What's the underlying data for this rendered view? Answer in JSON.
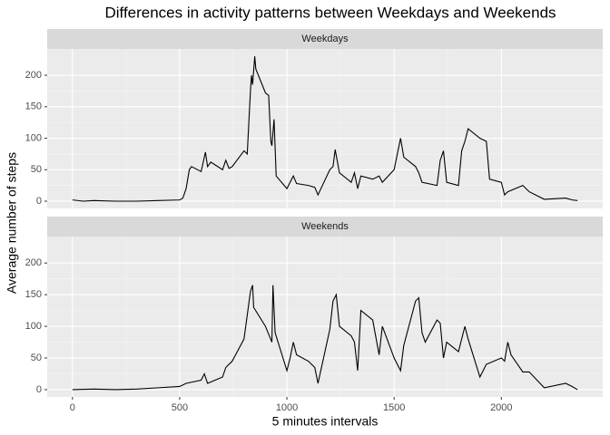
{
  "chart_data": {
    "type": "line",
    "title": "Differences in activity patterns between Weekdays and Weekends",
    "x_label": "5 minutes intervals",
    "y_label": "Average number of steps",
    "xlim": [
      -117.75,
      2472.75
    ],
    "xticks": [
      0,
      500,
      1000,
      1500,
      2000
    ],
    "ylim": [
      -11.5,
      241.8
    ],
    "yticks": [
      0,
      50,
      100,
      150,
      200
    ],
    "grid": true,
    "facets": [
      {
        "strip": "Weekdays",
        "color": "#000000",
        "x": [
          0,
          50,
          100,
          200,
          300,
          400,
          500,
          515,
          530,
          545,
          555,
          600,
          615,
          620,
          630,
          645,
          700,
          715,
          730,
          745,
          800,
          815,
          830,
          835,
          840,
          850,
          855,
          900,
          915,
          925,
          930,
          940,
          950,
          1000,
          1015,
          1030,
          1045,
          1100,
          1130,
          1145,
          1200,
          1215,
          1225,
          1245,
          1300,
          1315,
          1330,
          1345,
          1400,
          1430,
          1445,
          1500,
          1530,
          1545,
          1600,
          1615,
          1630,
          1700,
          1715,
          1730,
          1745,
          1800,
          1815,
          1830,
          1845,
          1900,
          1930,
          1945,
          2000,
          2015,
          2030,
          2100,
          2130,
          2200,
          2300,
          2330,
          2355
        ],
        "values": [
          2,
          0,
          1,
          0,
          0,
          1,
          2,
          5,
          20,
          50,
          55,
          47,
          70,
          78,
          55,
          62,
          50,
          65,
          52,
          55,
          80,
          75,
          175,
          200,
          185,
          230,
          210,
          172,
          168,
          95,
          88,
          130,
          40,
          20,
          30,
          40,
          28,
          25,
          22,
          10,
          50,
          55,
          82,
          45,
          30,
          45,
          20,
          40,
          35,
          40,
          30,
          50,
          100,
          70,
          55,
          45,
          30,
          25,
          65,
          80,
          30,
          25,
          80,
          95,
          115,
          100,
          95,
          35,
          30,
          10,
          15,
          25,
          15,
          3,
          5,
          2,
          1
        ]
      },
      {
        "strip": "Weekends",
        "color": "#000000",
        "x": [
          0,
          100,
          200,
          300,
          400,
          500,
          530,
          600,
          615,
          630,
          700,
          715,
          745,
          800,
          830,
          840,
          845,
          900,
          930,
          935,
          945,
          1000,
          1015,
          1030,
          1045,
          1100,
          1130,
          1145,
          1200,
          1215,
          1230,
          1245,
          1300,
          1315,
          1330,
          1345,
          1400,
          1430,
          1445,
          1500,
          1530,
          1545,
          1600,
          1615,
          1630,
          1645,
          1700,
          1715,
          1730,
          1745,
          1800,
          1830,
          1845,
          1900,
          1930,
          2000,
          2015,
          2030,
          2045,
          2100,
          2130,
          2200,
          2300,
          2330,
          2355
        ],
        "values": [
          0,
          1,
          0,
          1,
          3,
          5,
          10,
          15,
          25,
          10,
          20,
          35,
          45,
          80,
          155,
          165,
          130,
          100,
          75,
          165,
          90,
          30,
          50,
          75,
          55,
          45,
          35,
          10,
          95,
          140,
          150,
          100,
          85,
          75,
          30,
          125,
          110,
          55,
          100,
          50,
          30,
          70,
          140,
          145,
          90,
          75,
          110,
          105,
          50,
          75,
          60,
          100,
          80,
          20,
          40,
          50,
          45,
          75,
          55,
          28,
          28,
          3,
          10,
          5,
          0
        ]
      }
    ]
  }
}
